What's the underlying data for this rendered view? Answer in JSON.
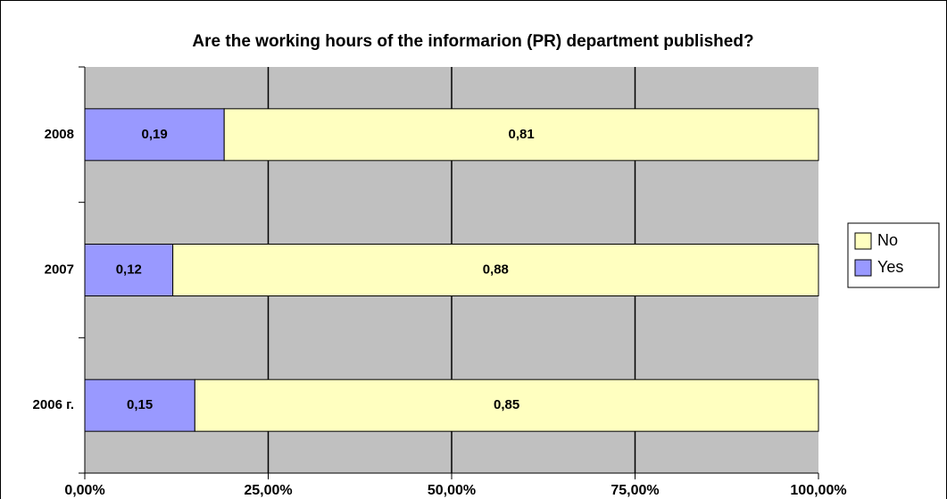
{
  "chart_data": {
    "type": "stacked_bar_horizontal",
    "title": "Are the working hours of the informarion (PR) department published?",
    "categories": [
      "2006 г.",
      "2007",
      "2008"
    ],
    "series": [
      {
        "name": "Yes",
        "color": "#9999ff",
        "values": [
          15,
          12,
          19
        ],
        "value_labels": [
          "0,15",
          "0,12",
          "0,19"
        ]
      },
      {
        "name": "No",
        "color": "#ffffc0",
        "values": [
          85,
          88,
          81
        ],
        "value_labels": [
          "0,85",
          "0,88",
          "0,81"
        ]
      }
    ],
    "xlim": [
      0,
      100
    ],
    "xticks": [
      {
        "value": 0,
        "label": "0,00%"
      },
      {
        "value": 25,
        "label": "25,00%"
      },
      {
        "value": 50,
        "label": "50,00%"
      },
      {
        "value": 75,
        "label": "75,00%"
      },
      {
        "value": 100,
        "label": "100,00%"
      }
    ],
    "grid": true,
    "legend": "right",
    "background": "#c0c0c0"
  }
}
